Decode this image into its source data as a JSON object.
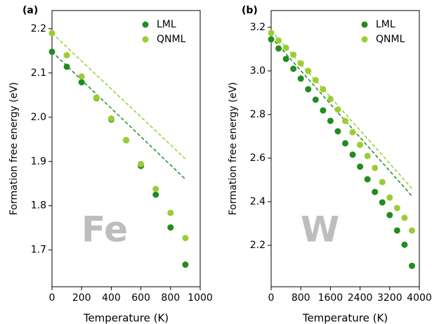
{
  "chart_data": [
    {
      "type": "scatter",
      "panel_label": "(a)",
      "annotation": "Fe",
      "xlabel": "Temperature (K)",
      "ylabel": "Formation free energy (eV)",
      "xlim": [
        0,
        1000
      ],
      "xticks": [
        0,
        200,
        400,
        600,
        800,
        1000
      ],
      "ylim": [
        1.617,
        2.241
      ],
      "yticks": [
        1.7,
        1.8,
        1.9,
        {
          "value": 2,
          "label": "2.0"
        },
        2.1,
        2.2
      ],
      "legend": "upper right",
      "grid": false,
      "x": [
        0,
        100,
        200,
        300,
        400,
        500,
        600,
        700,
        800,
        900
      ],
      "series": [
        {
          "name": "LML",
          "color": "#228b22",
          "values": [
            2.148,
            2.114,
            2.079,
            2.043,
            1.995,
            1.948,
            1.89,
            1.825,
            1.751,
            1.667
          ],
          "fit": {
            "x": [
              0,
              900
            ],
            "values": [
              2.148,
              1.86
            ]
          }
        },
        {
          "name": "QNML",
          "color": "#9acd32",
          "values": [
            2.19,
            2.14,
            2.092,
            2.044,
            1.997,
            1.948,
            1.894,
            1.838,
            1.784,
            1.727
          ],
          "fit": {
            "x": [
              0,
              900
            ],
            "values": [
              2.19,
              1.906
            ]
          }
        }
      ]
    },
    {
      "type": "scatter",
      "panel_label": "(b)",
      "annotation": "W",
      "xlabel": "Temperature (K)",
      "ylabel": "Formation free energy (eV)",
      "xlim": [
        0,
        4000
      ],
      "xticks": [
        0,
        800,
        1600,
        2400,
        3200,
        4000
      ],
      "ylim": [
        2.01,
        3.277
      ],
      "yticks": [
        2.2,
        2.4,
        2.6,
        2.8,
        {
          "value": 3,
          "label": "3.0"
        },
        3.2
      ],
      "legend": "upper right",
      "grid": false,
      "x": [
        0,
        200,
        400,
        600,
        800,
        1000,
        1200,
        1400,
        1600,
        1800,
        2000,
        2200,
        2400,
        2600,
        2800,
        3000,
        3200,
        3400,
        3600,
        3800
      ],
      "series": [
        {
          "name": "LML",
          "color": "#228b22",
          "values": [
            3.145,
            3.103,
            3.055,
            3.01,
            2.965,
            2.916,
            2.868,
            2.819,
            2.771,
            2.723,
            2.668,
            2.616,
            2.561,
            2.503,
            2.445,
            2.397,
            2.339,
            2.268,
            2.203,
            2.106
          ],
          "fit": {
            "x": [
              0,
              3800
            ],
            "values": [
              3.155,
              2.426
            ]
          }
        },
        {
          "name": "QNML",
          "color": "#9acd32",
          "values": [
            3.174,
            3.139,
            3.106,
            3.074,
            3.035,
            3.0,
            2.958,
            2.916,
            2.871,
            2.823,
            2.771,
            2.719,
            2.661,
            2.61,
            2.555,
            2.49,
            2.419,
            2.371,
            2.326,
            2.268
          ],
          "fit": {
            "x": [
              0,
              3800
            ],
            "values": [
              3.184,
              2.461
            ]
          }
        }
      ]
    }
  ]
}
